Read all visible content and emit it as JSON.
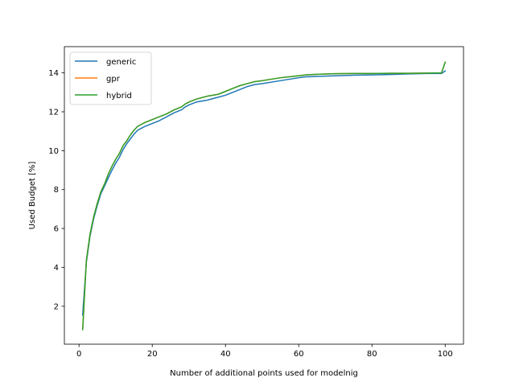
{
  "chart_data": {
    "type": "line",
    "title": "",
    "xlabel": "Number of additional points used for modelnig",
    "ylabel": "Used Budget [%]",
    "xlim": [
      -4,
      105
    ],
    "ylim": [
      0.05,
      15.35
    ],
    "xticks": [
      0,
      20,
      40,
      60,
      80,
      100
    ],
    "yticks": [
      2,
      4,
      6,
      8,
      10,
      12,
      14
    ],
    "grid": false,
    "legend_position": "upper-left",
    "series": [
      {
        "name": "generic",
        "color": "#1f77b4",
        "x": [
          1,
          2,
          3,
          4,
          5,
          6,
          7,
          8,
          9,
          10,
          11,
          12,
          13,
          14,
          15,
          16,
          17,
          18,
          20,
          22,
          24,
          26,
          28,
          29,
          30,
          32,
          35,
          38,
          40,
          42,
          44,
          46,
          48,
          50,
          55,
          60,
          62,
          65,
          70,
          75,
          80,
          85,
          90,
          95,
          99,
          100
        ],
        "values": [
          1.55,
          4.25,
          5.6,
          6.5,
          7.2,
          7.8,
          8.2,
          8.6,
          9.0,
          9.35,
          9.65,
          10.05,
          10.35,
          10.6,
          10.85,
          11.05,
          11.15,
          11.25,
          11.4,
          11.55,
          11.75,
          11.95,
          12.1,
          12.25,
          12.35,
          12.5,
          12.6,
          12.75,
          12.85,
          13.0,
          13.15,
          13.3,
          13.4,
          13.45,
          13.6,
          13.75,
          13.8,
          13.82,
          13.85,
          13.88,
          13.9,
          13.92,
          13.95,
          13.97,
          13.97,
          14.1
        ]
      },
      {
        "name": "gpr",
        "color": "#ff7f0e",
        "x": [
          1,
          2,
          3,
          4,
          5,
          6,
          7,
          8,
          9,
          10,
          11,
          12,
          13,
          14,
          15,
          16,
          17,
          18,
          20,
          22,
          24,
          26,
          28,
          29,
          30,
          32,
          35,
          38,
          40,
          42,
          44,
          46,
          48,
          50,
          55,
          60,
          62,
          65,
          70,
          75,
          80,
          85,
          90,
          95,
          99,
          100
        ],
        "values": [
          0.8,
          4.35,
          5.7,
          6.6,
          7.3,
          7.9,
          8.3,
          8.8,
          9.2,
          9.55,
          9.85,
          10.25,
          10.5,
          10.8,
          11.05,
          11.25,
          11.35,
          11.45,
          11.6,
          11.75,
          11.9,
          12.1,
          12.25,
          12.4,
          12.5,
          12.65,
          12.8,
          12.9,
          13.05,
          13.2,
          13.35,
          13.45,
          13.55,
          13.6,
          13.75,
          13.85,
          13.9,
          13.93,
          13.96,
          13.97,
          13.97,
          13.98,
          13.98,
          13.99,
          14.0,
          14.55
        ]
      },
      {
        "name": "hybrid",
        "color": "#2ca02c",
        "x": [
          1,
          2,
          3,
          4,
          5,
          6,
          7,
          8,
          9,
          10,
          11,
          12,
          13,
          14,
          15,
          16,
          17,
          18,
          20,
          22,
          24,
          26,
          28,
          29,
          30,
          32,
          35,
          38,
          40,
          42,
          44,
          46,
          48,
          50,
          55,
          60,
          62,
          65,
          70,
          75,
          80,
          85,
          90,
          95,
          99,
          100
        ],
        "values": [
          0.8,
          4.35,
          5.7,
          6.6,
          7.3,
          7.9,
          8.3,
          8.8,
          9.2,
          9.55,
          9.85,
          10.25,
          10.5,
          10.8,
          11.05,
          11.25,
          11.35,
          11.45,
          11.6,
          11.75,
          11.9,
          12.1,
          12.25,
          12.4,
          12.5,
          12.65,
          12.8,
          12.9,
          13.05,
          13.2,
          13.35,
          13.45,
          13.55,
          13.6,
          13.75,
          13.85,
          13.9,
          13.93,
          13.96,
          13.97,
          13.97,
          13.98,
          13.98,
          13.99,
          14.0,
          14.55
        ]
      }
    ]
  }
}
